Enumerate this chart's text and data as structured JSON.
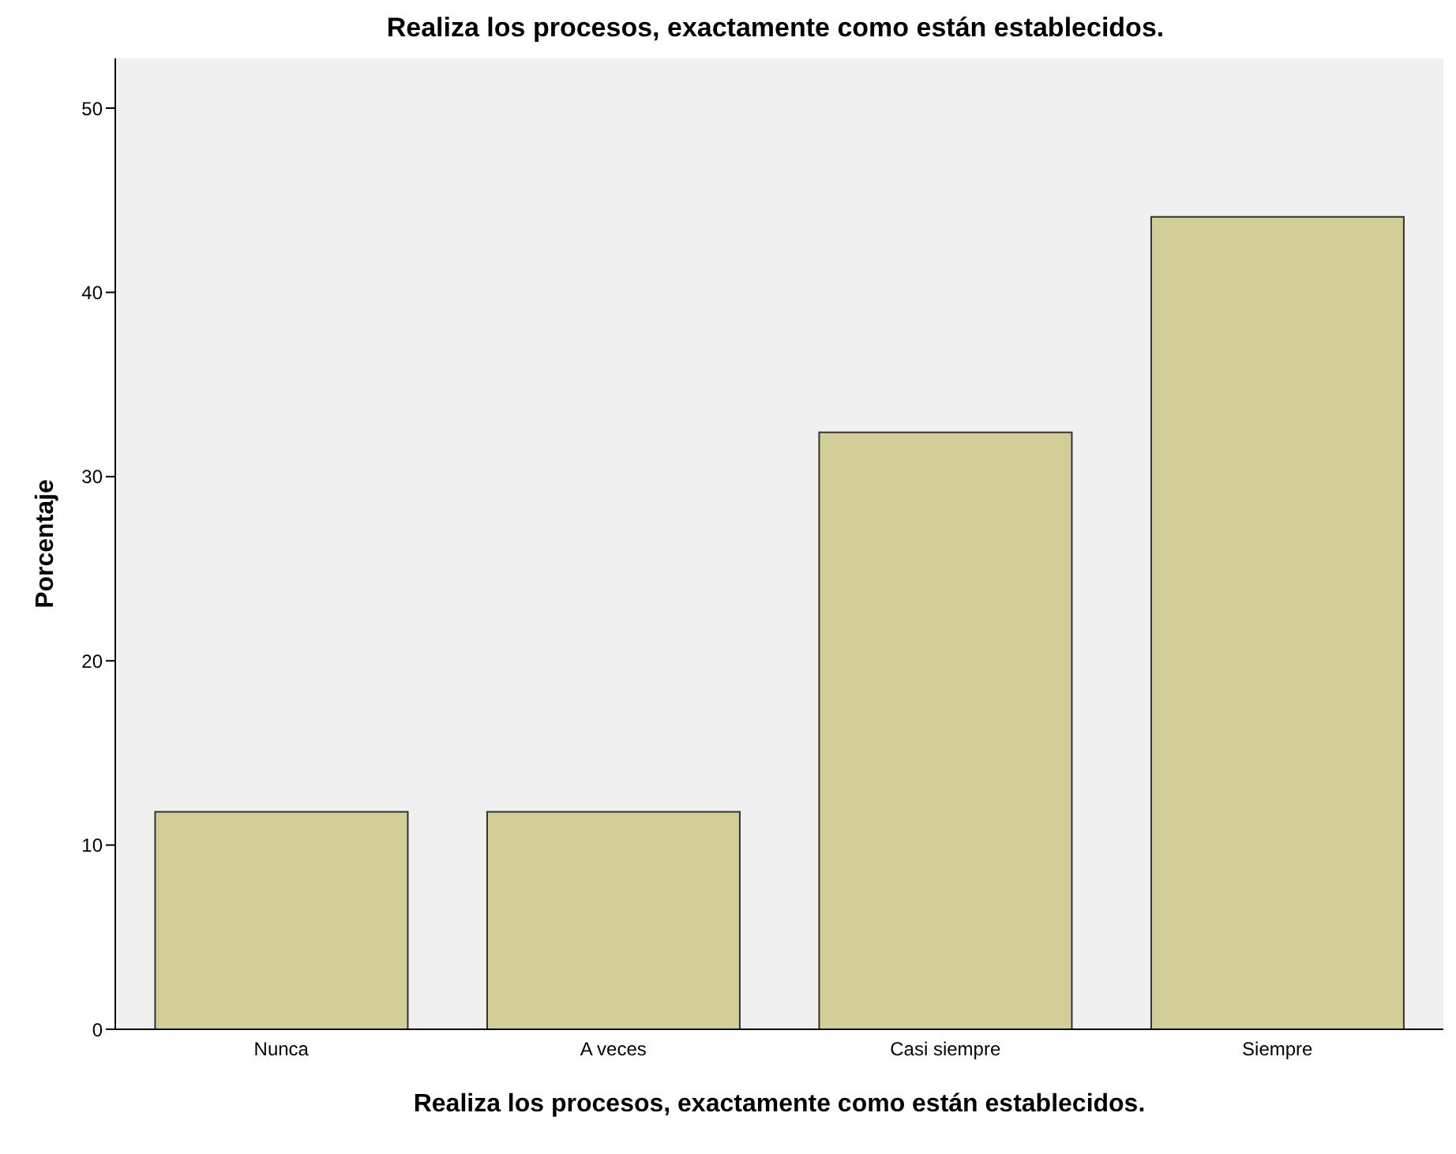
{
  "chart_data": {
    "type": "bar",
    "title": "Realiza los procesos, exactamente como están establecidos.",
    "xlabel": "Realiza los procesos, exactamente como están establecidos.",
    "ylabel": "Porcentaje",
    "categories": [
      "Nunca",
      "A veces",
      "Casi siempre",
      "Siempre"
    ],
    "values": [
      11.8,
      11.8,
      32.4,
      44.1
    ],
    "color": "#d3ce97",
    "ylim": [
      0,
      52.7
    ],
    "yticks": [
      0,
      10,
      20,
      30,
      40,
      50
    ],
    "grid": false
  }
}
